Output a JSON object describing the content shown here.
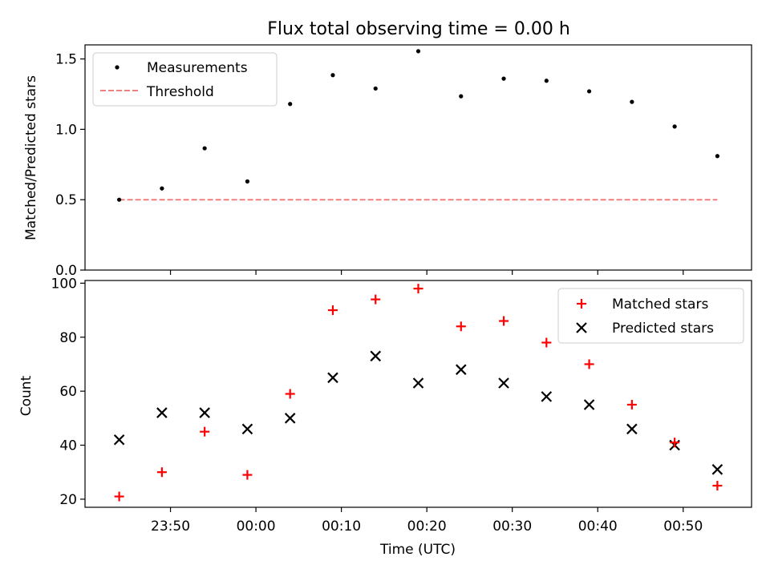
{
  "figure": {
    "title": "Flux total observing time = 0.00 h",
    "xlabel": "Time (UTC)"
  },
  "chart_data": [
    {
      "type": "scatter",
      "title": "Flux total observing time = 0.00 h",
      "xlabel": "",
      "ylabel": "Matched/Predicted stars",
      "x": [
        "23:44",
        "23:49",
        "23:54",
        "23:59",
        "00:04",
        "00:09",
        "00:14",
        "00:19",
        "00:24",
        "00:29",
        "00:34",
        "00:39",
        "00:44",
        "00:49",
        "00:54"
      ],
      "xlim": [
        "23:40",
        "00:58"
      ],
      "ylim": [
        0,
        1.6
      ],
      "yticks": [
        0.0,
        0.5,
        1.0,
        1.5
      ],
      "ytick_labels": [
        "0.0",
        "0.5",
        "1.0",
        "1.5"
      ],
      "series": [
        {
          "name": "Measurements",
          "marker": "dot",
          "color": "#000000",
          "values": [
            0.5,
            0.58,
            0.865,
            0.63,
            1.18,
            1.385,
            1.29,
            1.555,
            1.235,
            1.36,
            1.345,
            1.27,
            1.195,
            1.02,
            0.81
          ]
        },
        {
          "name": "Threshold",
          "style": "dashed-line",
          "color": "#f08080",
          "values": [
            0.5,
            0.5
          ]
        }
      ],
      "legend": "top-left",
      "grid": false
    },
    {
      "type": "scatter",
      "xlabel": "Time (UTC)",
      "ylabel": "Count",
      "x": [
        "23:44",
        "23:49",
        "23:54",
        "23:59",
        "00:04",
        "00:09",
        "00:14",
        "00:19",
        "00:24",
        "00:29",
        "00:34",
        "00:39",
        "00:44",
        "00:49",
        "00:54"
      ],
      "xlim": [
        "23:40",
        "00:58"
      ],
      "xticks": [
        "23:50",
        "00:00",
        "00:10",
        "00:20",
        "00:30",
        "00:40",
        "00:50"
      ],
      "ylim": [
        17,
        101
      ],
      "yticks": [
        20,
        40,
        60,
        80,
        100
      ],
      "series": [
        {
          "name": "Matched stars",
          "marker": "plus",
          "color": "#ff0000",
          "values": [
            21,
            30,
            45,
            29,
            59,
            90,
            94,
            98,
            84,
            86,
            78,
            70,
            55,
            41,
            25
          ]
        },
        {
          "name": "Predicted stars",
          "marker": "x",
          "color": "#000000",
          "values": [
            42,
            52,
            52,
            46,
            50,
            65,
            73,
            63,
            68,
            63,
            58,
            55,
            46,
            40,
            31
          ]
        }
      ],
      "legend": "top-right",
      "grid": false
    }
  ]
}
